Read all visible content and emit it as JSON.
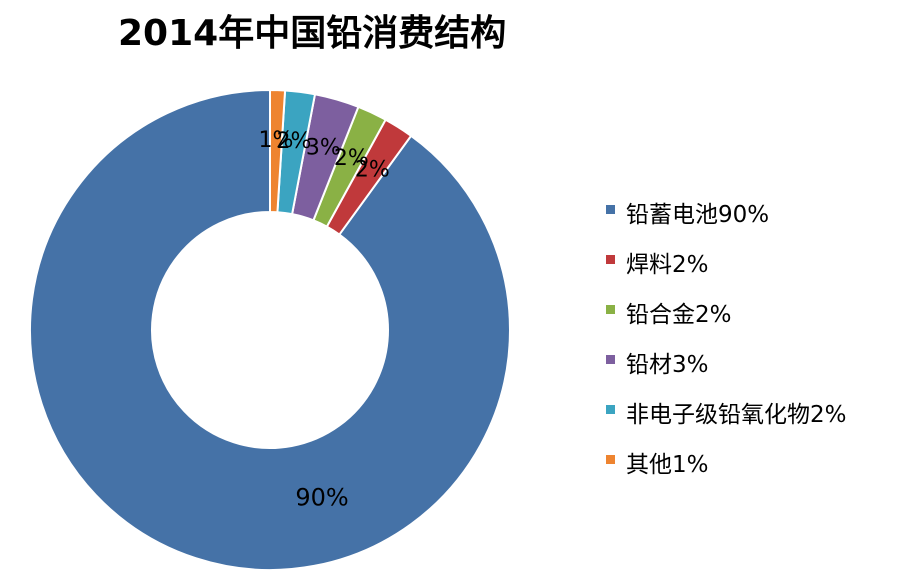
{
  "chart_data": {
    "type": "pie",
    "title": "2014年中国铅消费结构",
    "categories": [
      "铅蓄电池",
      "焊料",
      "铅合金",
      "铅材",
      "非电子级铅氧化物",
      "其他"
    ],
    "values": [
      90,
      2,
      2,
      3,
      2,
      1
    ],
    "value_labels": [
      "90%",
      "2%",
      "2%",
      "3%",
      "2%",
      "1%"
    ],
    "legend_labels": [
      "铅蓄电池90%",
      "焊料2%",
      "铅合金2%",
      "铅材3%",
      "非电子级铅氧化物2%",
      "其他1%"
    ],
    "colors": [
      "#4572A7",
      "#C0393B",
      "#8AB145",
      "#7D5F9F",
      "#3BA4C1",
      "#EE8430"
    ],
    "donut": true,
    "legend_position": "right"
  }
}
